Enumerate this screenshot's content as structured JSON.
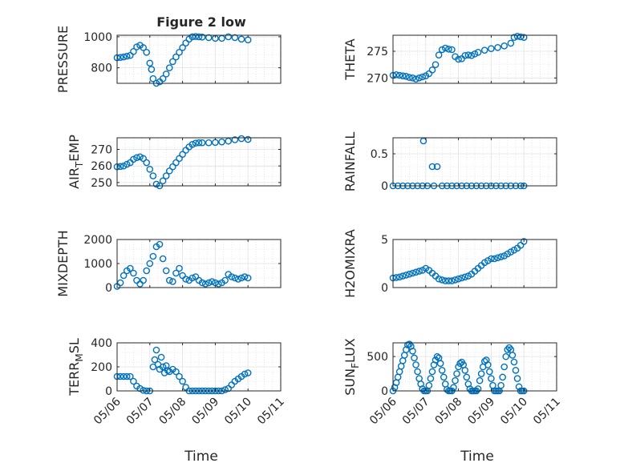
{
  "figure": {
    "title": "Figure 2 low",
    "xlabel": "Time",
    "marker_color": "#0072BD"
  },
  "chart_data": [
    {
      "type": "scatter",
      "id": "pressure",
      "ylabel": "PRESSURE",
      "xlim": [
        0,
        5
      ],
      "ylim": [
        700,
        1010
      ],
      "yticks": [
        800,
        1000
      ],
      "ytick_labels": [
        "800",
        "1000"
      ],
      "x": [
        0,
        0.1,
        0.2,
        0.3,
        0.4,
        0.5,
        0.6,
        0.7,
        0.8,
        0.9,
        1.0,
        1.05,
        1.1,
        1.2,
        1.3,
        1.4,
        1.5,
        1.6,
        1.7,
        1.8,
        1.9,
        2.0,
        2.1,
        2.2,
        2.3,
        2.4,
        2.5,
        2.6,
        2.8,
        3.0,
        3.2,
        3.4,
        3.6,
        3.8,
        4.0
      ],
      "y": [
        865,
        867,
        870,
        875,
        880,
        905,
        935,
        945,
        930,
        900,
        830,
        790,
        730,
        700,
        710,
        730,
        760,
        800,
        840,
        870,
        900,
        930,
        960,
        985,
        1000,
        1002,
        1000,
        998,
        995,
        990,
        990,
        1000,
        995,
        985,
        980
      ]
    },
    {
      "type": "scatter",
      "id": "theta",
      "ylabel": "THETA",
      "xlim": [
        0,
        5
      ],
      "ylim": [
        269,
        278
      ],
      "yticks": [
        270,
        275
      ],
      "ytick_labels": [
        "270",
        "275"
      ],
      "x": [
        0,
        0.1,
        0.2,
        0.3,
        0.4,
        0.5,
        0.6,
        0.7,
        0.8,
        0.9,
        1.0,
        1.1,
        1.2,
        1.3,
        1.4,
        1.5,
        1.6,
        1.7,
        1.8,
        1.9,
        2.0,
        2.1,
        2.2,
        2.3,
        2.4,
        2.5,
        2.6,
        2.8,
        3.0,
        3.2,
        3.4,
        3.6,
        3.7,
        3.8,
        3.9,
        4.0
      ],
      "y": [
        270.5,
        270.6,
        270.5,
        270.4,
        270.3,
        270.1,
        270,
        269.8,
        270,
        270.2,
        270.4,
        270.8,
        271.5,
        272.5,
        274.3,
        275.3,
        275.6,
        275.4,
        275.3,
        274.0,
        273.5,
        273.6,
        274.2,
        274.3,
        274.2,
        274.5,
        274.8,
        275.2,
        275.5,
        275.7,
        276.0,
        276.5,
        277.6,
        277.8,
        277.7,
        277.6
      ]
    },
    {
      "type": "scatter",
      "id": "air-temp",
      "ylabel": "AIR",
      "ylabel_sub": "T",
      "ylabel_rest": "EMP",
      "xlim": [
        0,
        5
      ],
      "ylim": [
        248,
        277
      ],
      "yticks": [
        250,
        260,
        270
      ],
      "ytick_labels": [
        "250",
        "260",
        "270"
      ],
      "x": [
        0,
        0.1,
        0.2,
        0.3,
        0.4,
        0.5,
        0.6,
        0.7,
        0.8,
        0.9,
        1.0,
        1.1,
        1.2,
        1.3,
        1.4,
        1.5,
        1.6,
        1.7,
        1.8,
        1.9,
        2.0,
        2.1,
        2.2,
        2.3,
        2.4,
        2.5,
        2.6,
        2.8,
        3.0,
        3.2,
        3.4,
        3.6,
        3.8,
        4.0
      ],
      "y": [
        259.5,
        259.7,
        260,
        261,
        262,
        264,
        265,
        265.5,
        264.5,
        262,
        258,
        254,
        249,
        248,
        251,
        254,
        257,
        259.5,
        262,
        264.5,
        267,
        269.5,
        271.5,
        273,
        273.8,
        274,
        274,
        274,
        274.2,
        274.5,
        275,
        275.8,
        276.5,
        276
      ]
    },
    {
      "type": "scatter",
      "id": "rainfall",
      "ylabel": "RAINFALL",
      "xlim": [
        0,
        5
      ],
      "ylim": [
        0,
        0.75
      ],
      "yticks": [
        0,
        0.5
      ],
      "ytick_labels": [
        "0",
        "0.5"
      ],
      "x": [
        0,
        0.15,
        0.3,
        0.45,
        0.6,
        0.75,
        0.9,
        0.93,
        1.05,
        1.2,
        1.25,
        1.35,
        1.5,
        1.65,
        1.8,
        1.95,
        2.1,
        2.25,
        2.4,
        2.55,
        2.7,
        2.85,
        3.0,
        3.15,
        3.3,
        3.45,
        3.6,
        3.75,
        3.9,
        4.0
      ],
      "y": [
        0,
        0,
        0,
        0,
        0,
        0,
        0,
        0.7,
        0,
        0.3,
        0,
        0.3,
        0,
        0,
        0,
        0,
        0,
        0,
        0,
        0,
        0,
        0,
        0,
        0,
        0,
        0,
        0,
        0,
        0,
        0
      ]
    },
    {
      "type": "scatter",
      "id": "mixdepth",
      "ylabel": "MIXDEPTH",
      "xlim": [
        0,
        5
      ],
      "ylim": [
        0,
        2000
      ],
      "yticks": [
        0,
        1000,
        2000
      ],
      "ytick_labels": [
        "0",
        "1000",
        "2000"
      ],
      "x": [
        0,
        0.1,
        0.2,
        0.3,
        0.4,
        0.5,
        0.6,
        0.7,
        0.8,
        0.9,
        1.0,
        1.1,
        1.2,
        1.3,
        1.4,
        1.5,
        1.6,
        1.7,
        1.8,
        1.9,
        2.0,
        2.1,
        2.2,
        2.3,
        2.4,
        2.5,
        2.6,
        2.7,
        2.8,
        2.9,
        3.0,
        3.1,
        3.2,
        3.3,
        3.4,
        3.5,
        3.6,
        3.7,
        3.8,
        3.9,
        4.0
      ],
      "y": [
        50,
        200,
        500,
        700,
        800,
        600,
        300,
        150,
        300,
        700,
        1000,
        1300,
        1700,
        1800,
        1200,
        700,
        300,
        250,
        600,
        800,
        500,
        350,
        300,
        400,
        450,
        300,
        200,
        150,
        200,
        250,
        200,
        150,
        200,
        300,
        550,
        450,
        400,
        350,
        400,
        450,
        400
      ]
    },
    {
      "type": "scatter",
      "id": "h2omixra",
      "ylabel": "H2OMIXRA",
      "xlim": [
        0,
        5
      ],
      "ylim": [
        0,
        5
      ],
      "yticks": [
        0,
        5
      ],
      "ytick_labels": [
        "0",
        "5"
      ],
      "x": [
        0,
        0.1,
        0.2,
        0.3,
        0.4,
        0.5,
        0.6,
        0.7,
        0.8,
        0.9,
        1.0,
        1.1,
        1.2,
        1.3,
        1.4,
        1.5,
        1.6,
        1.7,
        1.8,
        1.9,
        2.0,
        2.1,
        2.2,
        2.3,
        2.4,
        2.5,
        2.6,
        2.7,
        2.8,
        2.9,
        3.0,
        3.1,
        3.2,
        3.3,
        3.4,
        3.5,
        3.6,
        3.7,
        3.8,
        3.9,
        4.0
      ],
      "y": [
        1.0,
        1.05,
        1.1,
        1.2,
        1.3,
        1.4,
        1.5,
        1.6,
        1.7,
        1.8,
        2.0,
        1.8,
        1.5,
        1.2,
        0.9,
        0.8,
        0.7,
        0.7,
        0.7,
        0.8,
        0.9,
        1.0,
        1.1,
        1.2,
        1.4,
        1.7,
        2.0,
        2.3,
        2.6,
        2.8,
        3.0,
        3.0,
        3.1,
        3.2,
        3.3,
        3.5,
        3.7,
        3.9,
        4.1,
        4.4,
        4.8
      ]
    },
    {
      "type": "scatter",
      "id": "terr-msl",
      "ylabel": "TERR",
      "ylabel_sub": "M",
      "ylabel_rest": "SL",
      "xlim": [
        0,
        5
      ],
      "ylim": [
        0,
        400
      ],
      "yticks": [
        0,
        200,
        400
      ],
      "ytick_labels": [
        "0",
        "200",
        "400"
      ],
      "x": [
        0,
        0.1,
        0.2,
        0.3,
        0.4,
        0.5,
        0.6,
        0.7,
        0.8,
        0.9,
        1.0,
        1.1,
        1.15,
        1.2,
        1.25,
        1.3,
        1.35,
        1.4,
        1.45,
        1.5,
        1.55,
        1.6,
        1.7,
        1.8,
        1.9,
        2.0,
        2.1,
        2.2,
        2.3,
        2.4,
        2.5,
        2.6,
        2.7,
        2.8,
        2.9,
        3.0,
        3.1,
        3.2,
        3.3,
        3.4,
        3.5,
        3.6,
        3.7,
        3.8,
        3.9,
        4.0
      ],
      "y": [
        120,
        120,
        120,
        120,
        120,
        80,
        40,
        20,
        5,
        0,
        0,
        200,
        260,
        340,
        220,
        180,
        280,
        200,
        150,
        210,
        170,
        160,
        180,
        160,
        120,
        80,
        30,
        0,
        0,
        0,
        0,
        0,
        0,
        0,
        0,
        0,
        0,
        0,
        10,
        20,
        50,
        80,
        100,
        120,
        140,
        150
      ]
    },
    {
      "type": "scatter",
      "id": "sun-flux",
      "ylabel": "SUN",
      "ylabel_sub": "F",
      "ylabel_rest": "LUX",
      "xlim": [
        0,
        5
      ],
      "ylim": [
        0,
        700
      ],
      "yticks": [
        0,
        500
      ],
      "ytick_labels": [
        "0",
        "500"
      ],
      "x": [
        0,
        0.05,
        0.1,
        0.15,
        0.2,
        0.25,
        0.3,
        0.35,
        0.4,
        0.45,
        0.5,
        0.55,
        0.6,
        0.65,
        0.7,
        0.75,
        0.8,
        0.85,
        0.9,
        0.95,
        1.0,
        1.05,
        1.1,
        1.15,
        1.2,
        1.25,
        1.3,
        1.35,
        1.4,
        1.45,
        1.5,
        1.55,
        1.6,
        1.65,
        1.7,
        1.75,
        1.8,
        1.85,
        1.9,
        1.95,
        2.0,
        2.05,
        2.1,
        2.15,
        2.2,
        2.25,
        2.3,
        2.35,
        2.4,
        2.45,
        2.5,
        2.55,
        2.6,
        2.65,
        2.7,
        2.75,
        2.8,
        2.85,
        2.9,
        2.95,
        3.0,
        3.05,
        3.1,
        3.15,
        3.2,
        3.25,
        3.3,
        3.35,
        3.4,
        3.45,
        3.5,
        3.55,
        3.6,
        3.65,
        3.7,
        3.75,
        3.8,
        3.85,
        3.9,
        3.95,
        4.0
      ],
      "y": [
        0,
        50,
        120,
        200,
        280,
        360,
        440,
        520,
        600,
        670,
        680,
        650,
        580,
        480,
        380,
        280,
        180,
        100,
        30,
        0,
        0,
        0,
        80,
        180,
        280,
        380,
        450,
        500,
        480,
        400,
        300,
        200,
        100,
        20,
        0,
        0,
        0,
        50,
        150,
        250,
        350,
        400,
        420,
        380,
        300,
        200,
        100,
        30,
        0,
        0,
        0,
        0,
        30,
        150,
        250,
        350,
        430,
        450,
        380,
        280,
        180,
        80,
        0,
        0,
        0,
        0,
        80,
        200,
        350,
        500,
        600,
        630,
        600,
        520,
        420,
        300,
        180,
        60,
        0,
        0,
        0
      ]
    }
  ],
  "x_ticks": {
    "values": [
      0,
      1,
      2,
      3,
      4,
      5
    ],
    "labels": [
      "05/06",
      "05/07",
      "05/08",
      "05/09",
      "05/10",
      "05/11"
    ]
  }
}
